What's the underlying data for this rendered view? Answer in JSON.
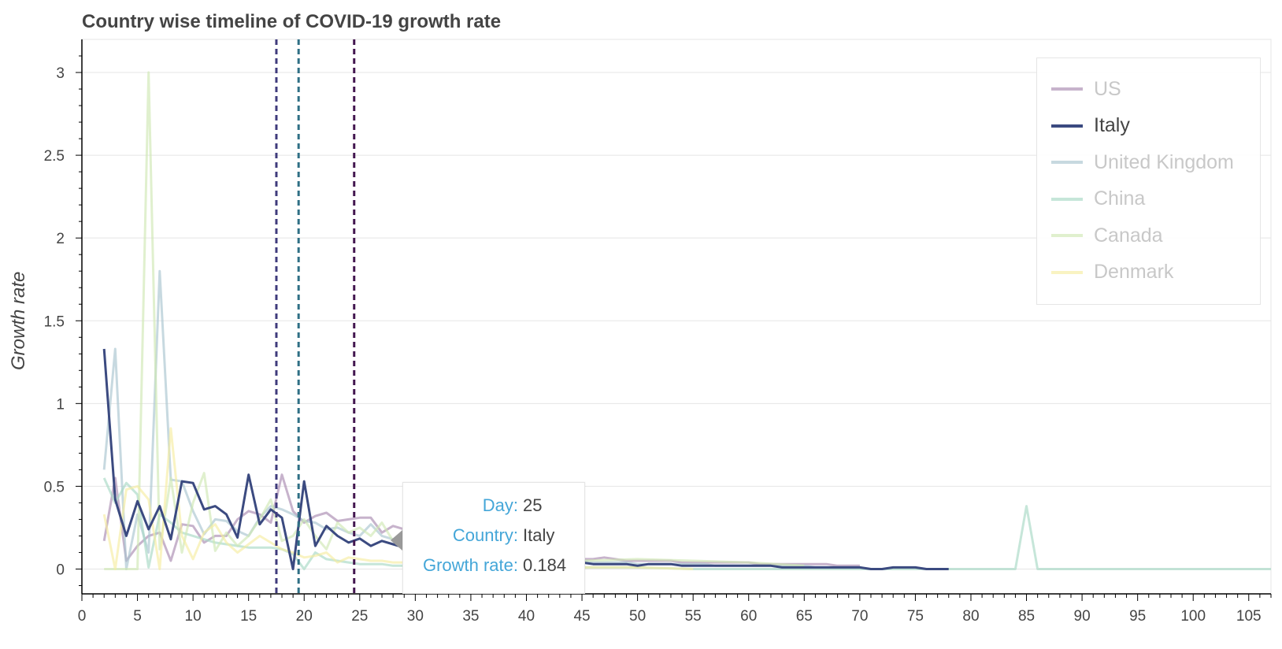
{
  "chart_data": {
    "type": "line",
    "title": "Country wise timeline of COVID-19 growth rate",
    "xlabel": "",
    "ylabel": "Growth rate",
    "xlim": [
      0,
      107
    ],
    "ylim": [
      -0.15,
      3.2
    ],
    "xticks": [
      0,
      5,
      10,
      15,
      20,
      25,
      30,
      35,
      40,
      45,
      50,
      55,
      60,
      65,
      70,
      75,
      80,
      85,
      90,
      95,
      100,
      105
    ],
    "yticks": [
      0,
      0.5,
      1,
      1.5,
      2,
      2.5,
      3
    ],
    "ytick_labels": [
      "0",
      "0.5",
      "1",
      "1.5",
      "2",
      "2.5",
      "3"
    ],
    "grid": true,
    "legend_position": "top-right",
    "active_series": "Italy",
    "vlines": [
      {
        "x": 17.5,
        "color": "#3f3b7c"
      },
      {
        "x": 19.5,
        "color": "#2f6f85"
      },
      {
        "x": 24.5,
        "color": "#43164f"
      }
    ],
    "series": [
      {
        "name": "US",
        "color": "#a98bb0",
        "x": [
          2,
          3,
          4,
          5,
          6,
          7,
          8,
          9,
          10,
          11,
          12,
          13,
          14,
          15,
          16,
          17,
          18,
          19,
          20,
          21,
          22,
          23,
          24,
          25,
          26,
          27,
          28,
          29,
          30,
          31,
          32,
          33,
          34,
          35,
          36,
          37,
          38,
          39,
          40,
          41,
          42,
          43,
          44,
          45,
          46,
          47,
          48,
          49,
          50,
          51,
          52,
          53,
          54,
          55,
          56,
          57,
          58,
          59,
          60,
          61,
          62,
          63,
          64,
          65,
          66,
          67,
          68,
          69,
          70
        ],
        "y": [
          0.17,
          0.55,
          0.05,
          0.14,
          0.2,
          0.22,
          0.05,
          0.27,
          0.26,
          0.16,
          0.2,
          0.2,
          0.3,
          0.35,
          0.33,
          0.28,
          0.57,
          0.35,
          0.28,
          0.32,
          0.34,
          0.29,
          0.3,
          0.31,
          0.31,
          0.22,
          0.26,
          0.24,
          0.2,
          0.18,
          0.17,
          0.15,
          0.13,
          0.12,
          0.11,
          0.1,
          0.1,
          0.09,
          0.08,
          0.08,
          0.07,
          0.07,
          0.06,
          0.06,
          0.06,
          0.07,
          0.06,
          0.05,
          0.05,
          0.05,
          0.05,
          0.05,
          0.04,
          0.04,
          0.04,
          0.04,
          0.04,
          0.04,
          0.04,
          0.03,
          0.03,
          0.03,
          0.03,
          0.03,
          0.03,
          0.03,
          0.02,
          0.02,
          0.02
        ]
      },
      {
        "name": "Italy",
        "color": "#3b4a80",
        "x": [
          2,
          3,
          4,
          5,
          6,
          7,
          8,
          9,
          10,
          11,
          12,
          13,
          14,
          15,
          16,
          17,
          18,
          19,
          20,
          21,
          22,
          23,
          24,
          25,
          26,
          27,
          28,
          29,
          30,
          31,
          32,
          33,
          34,
          35,
          36,
          37,
          38,
          39,
          40,
          41,
          42,
          43,
          44,
          45,
          46,
          47,
          48,
          49,
          50,
          51,
          52,
          53,
          54,
          55,
          56,
          57,
          58,
          59,
          60,
          61,
          62,
          63,
          64,
          65,
          66,
          67,
          68,
          69,
          70,
          71,
          72,
          73,
          74,
          75,
          76,
          77,
          78
        ],
        "y": [
          1.33,
          0.42,
          0.2,
          0.41,
          0.24,
          0.38,
          0.18,
          0.53,
          0.52,
          0.36,
          0.38,
          0.33,
          0.19,
          0.57,
          0.27,
          0.36,
          0.31,
          0.0,
          0.53,
          0.14,
          0.26,
          0.2,
          0.16,
          0.184,
          0.14,
          0.17,
          0.15,
          0.13,
          0.12,
          0.11,
          0.1,
          0.09,
          0.08,
          0.08,
          0.07,
          0.06,
          0.06,
          0.05,
          0.05,
          0.05,
          0.04,
          0.04,
          0.04,
          0.04,
          0.03,
          0.03,
          0.03,
          0.03,
          0.02,
          0.03,
          0.03,
          0.03,
          0.02,
          0.02,
          0.02,
          0.02,
          0.02,
          0.02,
          0.02,
          0.02,
          0.02,
          0.01,
          0.01,
          0.01,
          0.01,
          0.01,
          0.01,
          0.01,
          0.01,
          0.0,
          0.0,
          0.01,
          0.01,
          0.01,
          0.0,
          0.0,
          0.0
        ]
      },
      {
        "name": "United Kingdom",
        "color": "#a9c4d0",
        "x": [
          2,
          3,
          4,
          5,
          6,
          7,
          8,
          9,
          10,
          11,
          12,
          13,
          14,
          15,
          16,
          17,
          18,
          19,
          20,
          21,
          22,
          23,
          24,
          25,
          26,
          27,
          28,
          29,
          30,
          31,
          32,
          33,
          34,
          35,
          36,
          37,
          38,
          39,
          40,
          41,
          42,
          43,
          44,
          45,
          46,
          47,
          48,
          49,
          50,
          51,
          52,
          53,
          54,
          55,
          56,
          57,
          58,
          59,
          60,
          61,
          62,
          63,
          64,
          65,
          66,
          67,
          68,
          69,
          70
        ],
        "y": [
          0.6,
          1.33,
          0.0,
          0.33,
          0.1,
          1.8,
          0.54,
          0.53,
          0.35,
          0.21,
          0.3,
          0.29,
          0.23,
          0.2,
          0.31,
          0.38,
          0.36,
          0.33,
          0.29,
          0.28,
          0.24,
          0.25,
          0.22,
          0.2,
          0.27,
          0.2,
          0.18,
          0.17,
          0.15,
          0.14,
          0.13,
          0.12,
          0.11,
          0.1,
          0.09,
          0.09,
          0.08,
          0.07,
          0.07,
          0.06,
          0.06,
          0.05,
          0.05,
          0.05,
          0.04,
          0.04,
          0.04,
          0.04,
          0.03,
          0.03,
          0.03,
          0.03,
          0.03,
          0.03,
          0.03,
          0.02,
          0.02,
          0.02,
          0.02,
          0.02,
          0.02,
          0.02,
          0.02,
          0.02,
          0.01,
          0.01,
          0.01,
          0.01,
          0.01
        ]
      },
      {
        "name": "China",
        "color": "#a8d8c4",
        "x": [
          2,
          3,
          4,
          5,
          6,
          7,
          8,
          9,
          10,
          11,
          12,
          13,
          14,
          15,
          16,
          17,
          18,
          19,
          20,
          21,
          22,
          23,
          24,
          25,
          26,
          27,
          28,
          29,
          30,
          35,
          40,
          45,
          50,
          55,
          60,
          65,
          70,
          75,
          80,
          84,
          85,
          86,
          90,
          95,
          100,
          105,
          107
        ],
        "y": [
          0.55,
          0.4,
          0.52,
          0.45,
          0.01,
          0.33,
          0.28,
          0.22,
          0.2,
          0.18,
          0.16,
          0.15,
          0.14,
          0.13,
          0.13,
          0.13,
          0.12,
          0.09,
          0.0,
          0.1,
          0.06,
          0.05,
          0.04,
          0.03,
          0.03,
          0.03,
          0.02,
          0.02,
          0.01,
          0.01,
          0.01,
          0.01,
          0.01,
          0.0,
          0.0,
          0.0,
          0.0,
          0.0,
          0.0,
          0.0,
          0.38,
          0.0,
          0.0,
          0.0,
          0.0,
          0.0,
          0.0
        ]
      },
      {
        "name": "Canada",
        "color": "#cfe8b4",
        "x": [
          2,
          3,
          4,
          5,
          6,
          7,
          8,
          9,
          10,
          11,
          12,
          13,
          14,
          15,
          16,
          17,
          18,
          19,
          20,
          21,
          22,
          23,
          24,
          25,
          26,
          27,
          28,
          29,
          30,
          31,
          32,
          33,
          34,
          35,
          36,
          37,
          38,
          39,
          40,
          45,
          50,
          55,
          60,
          65
        ],
        "y": [
          0.0,
          0.0,
          0.0,
          0.0,
          3.0,
          0.12,
          0.55,
          0.1,
          0.4,
          0.58,
          0.11,
          0.22,
          0.14,
          0.2,
          0.3,
          0.42,
          0.17,
          0.2,
          0.3,
          0.2,
          0.12,
          0.28,
          0.22,
          0.25,
          0.2,
          0.28,
          0.17,
          0.14,
          0.12,
          0.11,
          0.1,
          0.1,
          0.09,
          0.08,
          0.08,
          0.07,
          0.07,
          0.06,
          0.05,
          0.05,
          0.06,
          0.05,
          0.04,
          0.02
        ]
      },
      {
        "name": "Denmark",
        "color": "#f6eda2",
        "x": [
          2,
          3,
          4,
          5,
          6,
          7,
          8,
          9,
          10,
          11,
          12,
          13,
          14,
          15,
          16,
          17,
          18,
          19,
          20,
          21,
          22,
          23,
          24,
          25,
          26,
          27,
          28,
          29,
          30,
          31,
          32,
          33,
          34,
          35,
          36,
          37,
          38,
          39,
          40,
          45,
          50,
          55
        ],
        "y": [
          0.33,
          0.0,
          0.48,
          0.5,
          0.42,
          0.0,
          0.85,
          0.2,
          0.06,
          0.22,
          0.27,
          0.16,
          0.1,
          0.15,
          0.2,
          0.16,
          0.12,
          0.1,
          0.07,
          0.08,
          0.1,
          0.04,
          0.07,
          0.06,
          0.05,
          0.05,
          0.04,
          0.04,
          0.04,
          0.03,
          0.03,
          0.03,
          0.03,
          0.03,
          0.02,
          0.02,
          0.02,
          0.02,
          0.02,
          0.01,
          0.01,
          0.0
        ]
      }
    ]
  },
  "tooltip": {
    "rows": [
      {
        "key": "Day:",
        "value": "25"
      },
      {
        "key": "Country:",
        "value": "Italy"
      },
      {
        "key": "Growth rate:",
        "value": "0.184"
      }
    ]
  }
}
